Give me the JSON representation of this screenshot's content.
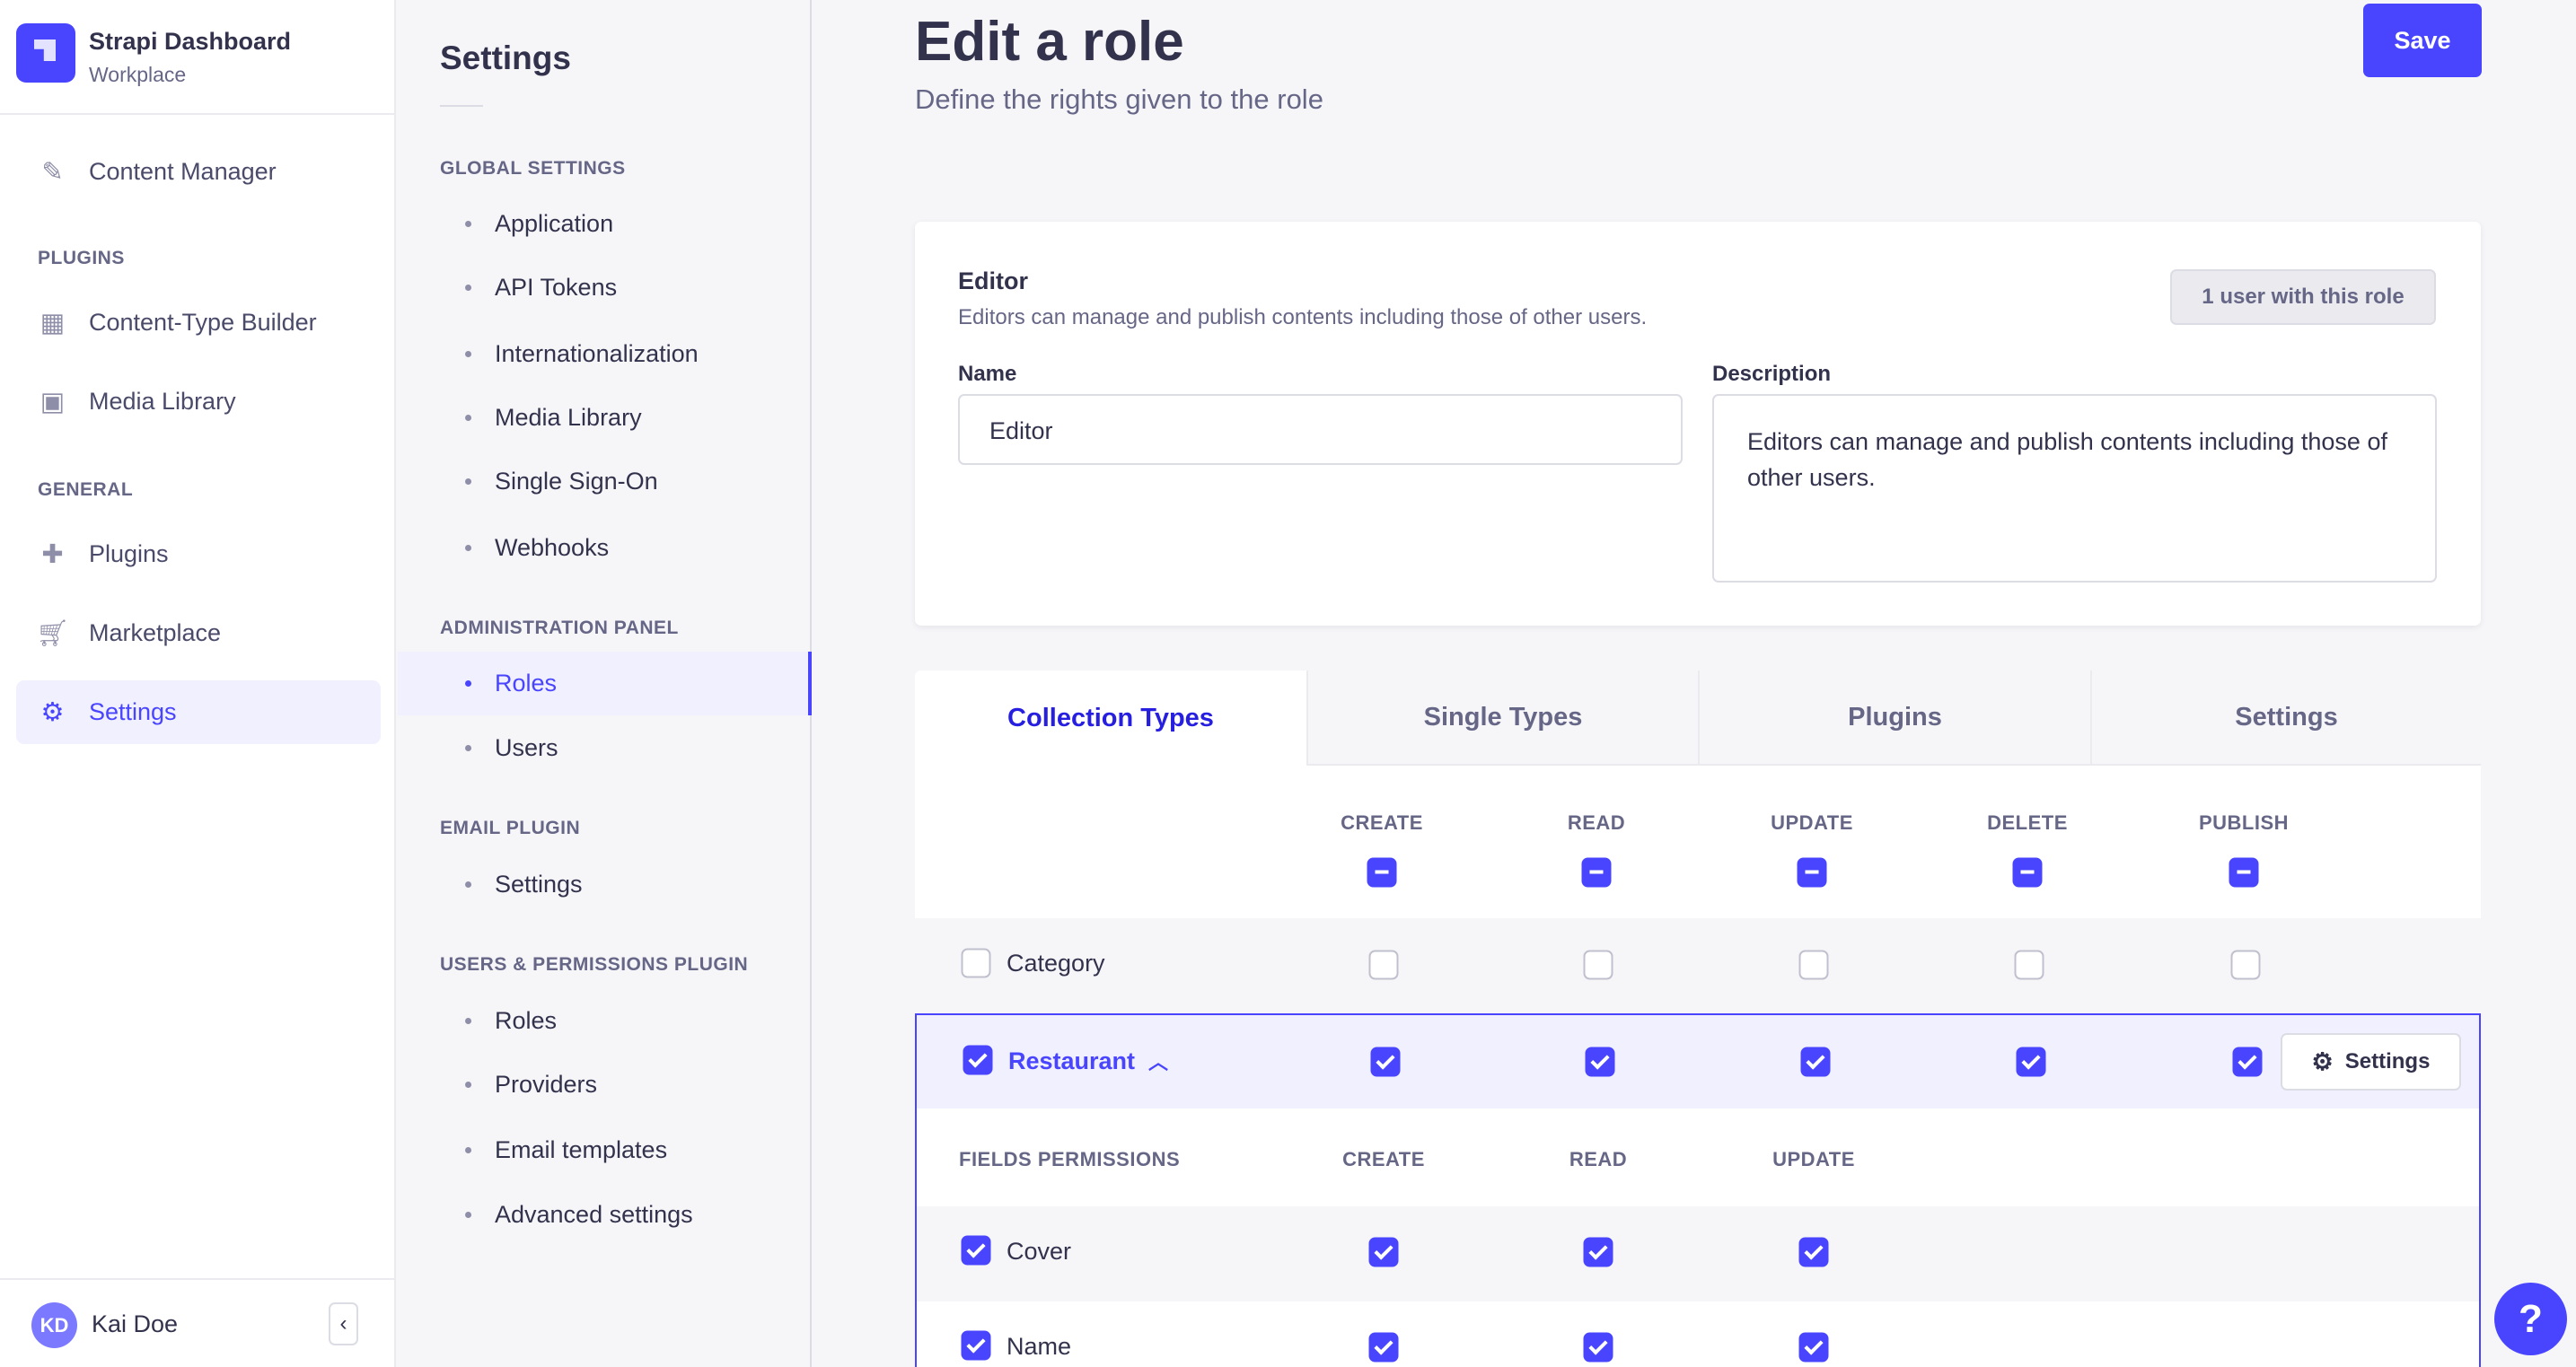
{
  "brand": {
    "title": "Strapi Dashboard",
    "subtitle": "Workplace"
  },
  "nav": {
    "content_manager": "Content Manager",
    "plugins_section": "PLUGINS",
    "ctb": "Content-Type Builder",
    "media": "Media Library",
    "general_section": "GENERAL",
    "plugins": "Plugins",
    "marketplace": "Marketplace",
    "settings": "Settings"
  },
  "user": {
    "initials": "KD",
    "name": "Kai Doe"
  },
  "settings_nav": {
    "title": "Settings",
    "sections": [
      {
        "title": "GLOBAL SETTINGS",
        "items": [
          "Application",
          "API Tokens",
          "Internationalization",
          "Media Library",
          "Single Sign-On",
          "Webhooks"
        ]
      },
      {
        "title": "ADMINISTRATION PANEL",
        "items": [
          "Roles",
          "Users"
        ]
      },
      {
        "title": "EMAIL PLUGIN",
        "items": [
          "Settings"
        ]
      },
      {
        "title": "USERS & PERMISSIONS PLUGIN",
        "items": [
          "Roles",
          "Providers",
          "Email templates",
          "Advanced settings"
        ]
      }
    ],
    "active": "Roles"
  },
  "page": {
    "title": "Edit a role",
    "subtitle": "Define the rights given to the role",
    "save": "Save"
  },
  "role": {
    "name": "Editor",
    "description": "Editors can manage and publish contents including those of other users.",
    "users_badge": "1 user with this role",
    "name_label": "Name",
    "name_value": "Editor",
    "desc_label": "Description",
    "desc_value": "Editors can manage and publish contents including those of other users."
  },
  "tabs": [
    "Collection Types",
    "Single Types",
    "Plugins",
    "Settings"
  ],
  "active_tab": "Collection Types",
  "columns": [
    "CREATE",
    "READ",
    "UPDATE",
    "DELETE",
    "PUBLISH"
  ],
  "rows": [
    {
      "name": "Category",
      "checked": [
        false,
        false,
        false,
        false,
        false
      ]
    },
    {
      "name": "Restaurant",
      "checked": [
        true,
        true,
        true,
        true,
        true
      ],
      "expanded": true,
      "settings_label": "Settings"
    }
  ],
  "fields": {
    "header": "FIELDS PERMISSIONS",
    "columns": [
      "CREATE",
      "READ",
      "UPDATE"
    ],
    "rows": [
      {
        "name": "Cover",
        "checked": [
          true,
          true,
          true
        ]
      },
      {
        "name": "Name",
        "checked": [
          true,
          true,
          true
        ]
      }
    ]
  },
  "help": "?",
  "colors": {
    "accent": "#4945ff",
    "active_bg": "#f0f0ff"
  }
}
